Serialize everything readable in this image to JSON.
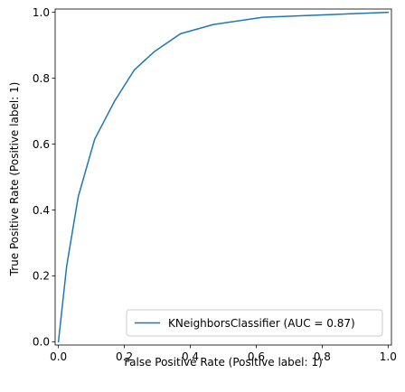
{
  "chart_data": {
    "type": "line",
    "xlabel": "False Positive Rate (Positive label: 1)",
    "ylabel": "True Positive Rate (Positive label: 1)",
    "xlim": [
      -0.01,
      1.01
    ],
    "ylim": [
      -0.01,
      1.01
    ],
    "xticks": [
      "0.0",
      "0.2",
      "0.4",
      "0.6",
      "0.8",
      "1.0"
    ],
    "yticks": [
      "0.0",
      "0.2",
      "0.4",
      "0.6",
      "0.8",
      "1.0"
    ],
    "grid": false,
    "legend_position": "lower-right",
    "series": [
      {
        "name": "KNeighborsClassifier (AUC = 0.87)",
        "color": "#1f77b4",
        "x": [
          0.0,
          0.025,
          0.06,
          0.11,
          0.17,
          0.23,
          0.29,
          0.37,
          0.47,
          0.62,
          1.0
        ],
        "y": [
          0.0,
          0.23,
          0.44,
          0.615,
          0.73,
          0.825,
          0.88,
          0.935,
          0.963,
          0.985,
          1.0
        ]
      }
    ]
  }
}
